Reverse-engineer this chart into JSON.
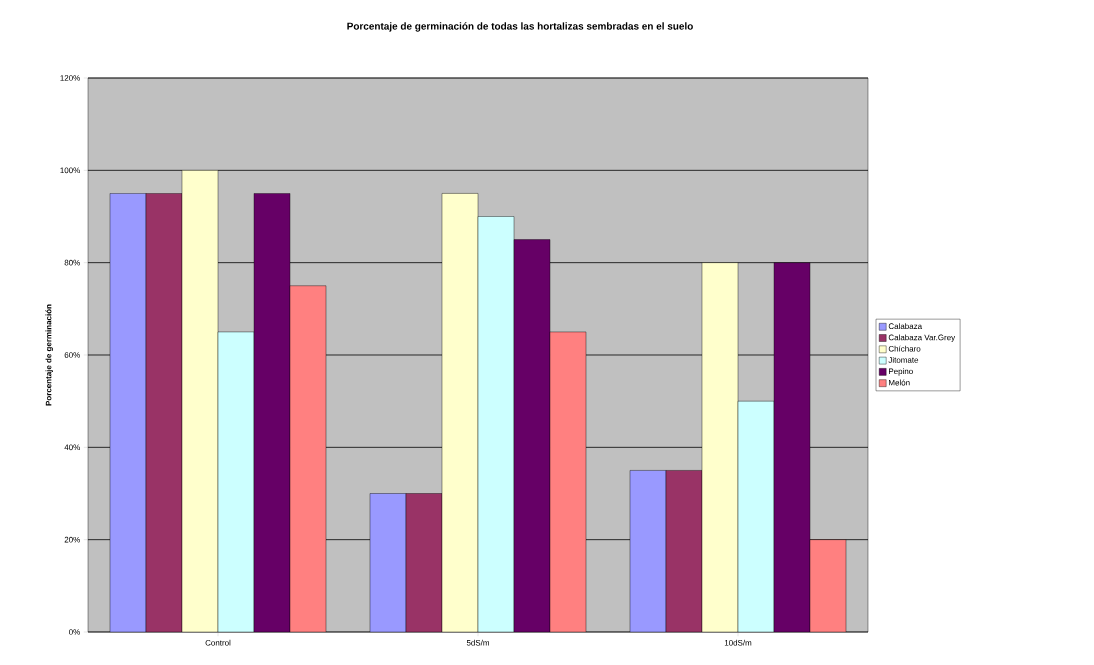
{
  "chart_data": {
    "type": "bar",
    "title": "Porcentaje de germinación de todas las hortalizas sembradas en el suelo",
    "ylabel": "Porcentaje de germinación",
    "categories": [
      "Control",
      "5dS/m",
      "10dS/m"
    ],
    "series": [
      {
        "name": "Calabaza",
        "color": "#9999ff",
        "values": [
          95,
          30,
          35
        ]
      },
      {
        "name": "Calabaza Var.Grey",
        "color": "#993366",
        "values": [
          95,
          30,
          35
        ]
      },
      {
        "name": "Chícharo",
        "color": "#ffffcc",
        "values": [
          100,
          95,
          80
        ]
      },
      {
        "name": "Jitomate",
        "color": "#ccffff",
        "values": [
          65,
          90,
          50
        ]
      },
      {
        "name": "Pepino",
        "color": "#660066",
        "values": [
          95,
          85,
          80
        ]
      },
      {
        "name": "Melón",
        "color": "#ff8080",
        "values": [
          75,
          65,
          20
        ]
      }
    ],
    "ylim": [
      0,
      120
    ],
    "yticks": [
      {
        "value": 0,
        "label": "0%"
      },
      {
        "value": 20,
        "label": "20%"
      },
      {
        "value": 40,
        "label": "40%"
      },
      {
        "value": 60,
        "label": "60%"
      },
      {
        "value": 80,
        "label": "80%"
      },
      {
        "value": 100,
        "label": "100%"
      },
      {
        "value": 120,
        "label": "120%"
      }
    ],
    "grid": "y",
    "legend": "right"
  }
}
